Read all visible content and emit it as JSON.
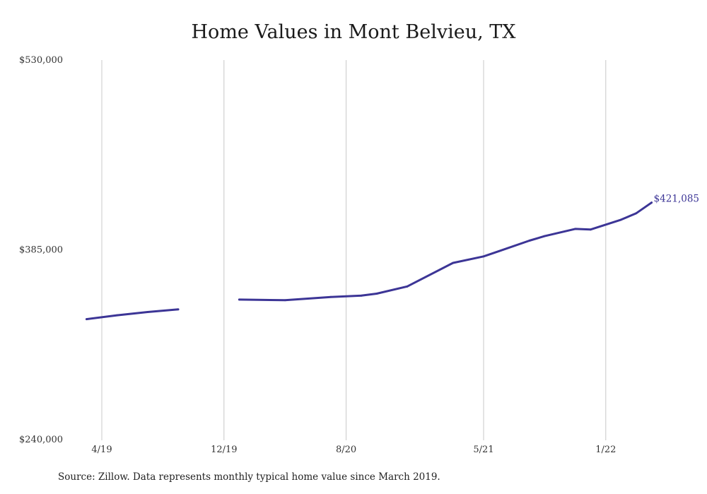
{
  "title": "Home Values in Mont Belvieu, TX",
  "source": "Source: Zillow. Data represents monthly typical home value since March 2019.",
  "colors": {
    "line": "#3c3596",
    "grid": "#c8c8c8",
    "text": "#333333"
  },
  "chart_data": {
    "type": "line",
    "title": "Home Values in Mont Belvieu, TX",
    "xlabel": "",
    "ylabel": "",
    "ylim": [
      240000,
      530000
    ],
    "y_ticks": [
      "$530,000",
      "$385,000",
      "$240,000"
    ],
    "y_tick_values": [
      530000,
      385000,
      240000
    ],
    "x_ticks": [
      "4/19",
      "12/19",
      "8/20",
      "5/21",
      "1/22"
    ],
    "x_tick_months": [
      "2019-04",
      "2019-12",
      "2020-08",
      "2021-05",
      "2022-01"
    ],
    "grid": "vertical",
    "series": [
      {
        "values": [
          {
            "x": "2019-03",
            "y": 332000
          },
          {
            "x": "2019-05",
            "y": 335000
          },
          {
            "x": "2019-07",
            "y": 337500
          },
          {
            "x": "2019-09",
            "y": 339500
          },
          {
            "x": "2020-01",
            "y": 347000
          },
          {
            "x": "2020-04",
            "y": 346500
          },
          {
            "x": "2020-07",
            "y": 349000
          },
          {
            "x": "2020-09",
            "y": 350000
          },
          {
            "x": "2020-10",
            "y": 351500
          },
          {
            "x": "2020-12",
            "y": 357000
          },
          {
            "x": "2021-03",
            "y": 375000
          },
          {
            "x": "2021-05",
            "y": 380000
          },
          {
            "x": "2021-06",
            "y": 384000
          },
          {
            "x": "2021-08",
            "y": 392000
          },
          {
            "x": "2021-09",
            "y": 395500
          },
          {
            "x": "2021-11",
            "y": 401000
          },
          {
            "x": "2021-12",
            "y": 400500
          },
          {
            "x": "2022-02",
            "y": 408000
          },
          {
            "x": "2022-03",
            "y": 413000
          },
          {
            "x": "2022-04",
            "y": 421085
          }
        ]
      }
    ],
    "end_label": "$421,085"
  }
}
